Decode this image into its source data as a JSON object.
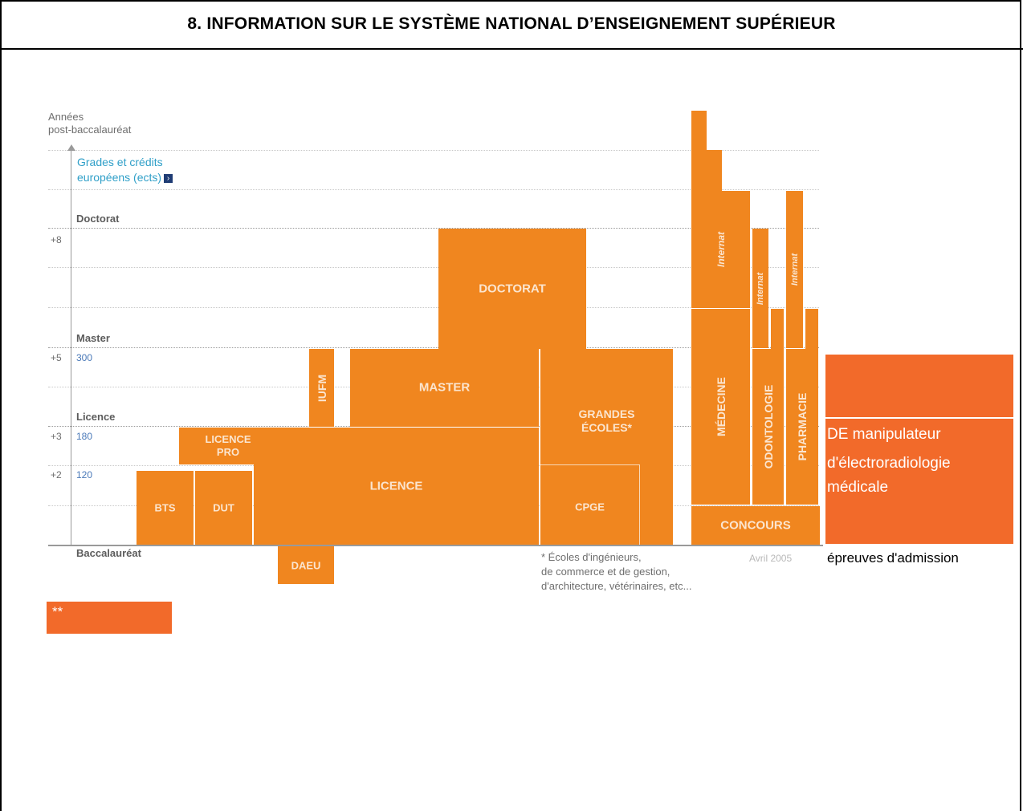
{
  "title": "8. INFORMATION SUR LE SYSTÈME NATIONAL D’ENSEIGNEMENT SUPÉRIEUR",
  "axis": {
    "y_title_line1": "Années",
    "y_title_line2": "post-baccalauréat",
    "credits_title_line1": "Grades et crédits",
    "credits_title_line2": "européens (ects)",
    "credits_icon": "›",
    "levels": [
      {
        "name": "Doctorat",
        "years": "+8",
        "credits": ""
      },
      {
        "name": "Master",
        "years": "+5",
        "credits": "300"
      },
      {
        "name": "Licence",
        "years": "+3",
        "credits": "180"
      },
      {
        "name": "",
        "years": "+2",
        "credits": "120"
      },
      {
        "name": "Baccalauréat",
        "years": "",
        "credits": ""
      }
    ]
  },
  "blocks": {
    "doctorat": "DOCTORAT",
    "master": "MASTER",
    "iufm": "IUFM",
    "grandes_ecoles_line1": "GRANDES",
    "grandes_ecoles_line2": "ÉCOLES*",
    "licence_pro_line1": "LICENCE",
    "licence_pro_line2": "PRO",
    "licence": "LICENCE",
    "bts": "BTS",
    "dut": "DUT",
    "cpge": "CPGE",
    "daeu": "DAEU",
    "medecine": "MÉDECINE",
    "odontologie": "ODONTOLOGIE",
    "pharmacie": "PHARMACIE",
    "internat": "Internat",
    "concours": "CONCOURS"
  },
  "footnote_line1": "* Écoles d'ingénieurs,",
  "footnote_line2": "de commerce et de gestion,",
  "footnote_line3": "d'architecture, vétérinaires, etc...",
  "date_label": "Avril 2005",
  "overlay": {
    "de_line1": "DE manipulateur",
    "de_line2": "d'électroradiologie",
    "de_line3": "médicale",
    "epreuves": "épreuves d'admission",
    "stars": "**"
  },
  "colors": {
    "orange": "#f0861f",
    "overlay_orange": "#f26a2a",
    "credits_blue": "#2f9fc8",
    "icon_navy": "#1f3c74"
  }
}
